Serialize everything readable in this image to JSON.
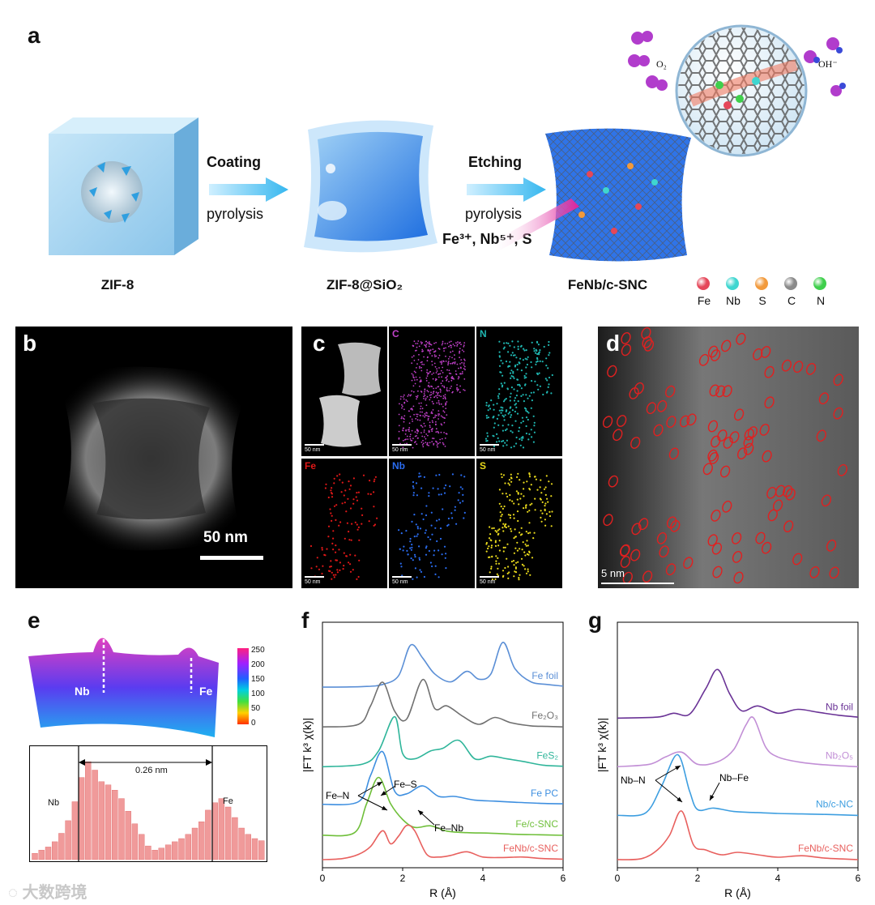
{
  "panel_labels": {
    "a": "a",
    "b": "b",
    "c": "c",
    "d": "d",
    "e": "e",
    "f": "f",
    "g": "g"
  },
  "schematic": {
    "step1": {
      "top": "Coating",
      "bottom": "pyrolysis"
    },
    "step2": {
      "top": "Etching",
      "bottom": "pyrolysis",
      "reagents": "Fe³⁺,  Nb⁵⁺,  S"
    },
    "labels": {
      "zif8": "ZIF-8",
      "zif8sio2": "ZIF-8@SiO₂",
      "product": "FeNb/c-SNC"
    },
    "bubble": {
      "o2": "O₂",
      "oh": "OH⁻"
    },
    "legend": [
      {
        "name": "Fe",
        "color": "#e5475a"
      },
      {
        "name": "Nb",
        "color": "#3fd6d0"
      },
      {
        "name": "S",
        "color": "#f29a3c"
      },
      {
        "name": "C",
        "color": "#8a8a8a"
      },
      {
        "name": "N",
        "color": "#3fcf4c"
      }
    ]
  },
  "panel_b": {
    "scale": "50 nm"
  },
  "panel_c": {
    "maps": [
      {
        "label": "",
        "color": "#cccccc"
      },
      {
        "label": "C",
        "color": "#c040c8"
      },
      {
        "label": "N",
        "color": "#1fb5b0"
      },
      {
        "label": "Fe",
        "color": "#e01818"
      },
      {
        "label": "Nb",
        "color": "#2a6cf0"
      },
      {
        "label": "S",
        "color": "#e8d81c"
      }
    ],
    "scale": "50 nm"
  },
  "panel_d": {
    "scale": "5 nm"
  },
  "panel_e": {
    "colorbar_ticks": [
      "250",
      "200",
      "150",
      "100",
      "50",
      "0"
    ],
    "peak_labels": {
      "nb": "Nb",
      "fe": "Fe"
    },
    "profile_labels": {
      "nb": "Nb",
      "fe": "Fe",
      "distance": "0.26 nm"
    },
    "profile": [
      0.06,
      0.09,
      0.12,
      0.17,
      0.25,
      0.37,
      0.55,
      0.78,
      0.93,
      0.85,
      0.74,
      0.71,
      0.66,
      0.58,
      0.46,
      0.34,
      0.24,
      0.13,
      0.09,
      0.11,
      0.14,
      0.17,
      0.2,
      0.24,
      0.3,
      0.36,
      0.47,
      0.54,
      0.58,
      0.5,
      0.4,
      0.3,
      0.24,
      0.2,
      0.18
    ]
  },
  "chart_data": [
    {
      "type": "line",
      "panel": "f",
      "xlabel": "R (Å)",
      "ylabel": "|FT k³ χ(k)|",
      "xlim": [
        0,
        6
      ],
      "xticks": [
        "0",
        "2",
        "4",
        "6"
      ],
      "series": [
        {
          "name": "Fe foil",
          "color": "#5b8fd6",
          "offset": 0.78,
          "x": [
            0,
            1,
            1.5,
            1.9,
            2.2,
            2.5,
            2.8,
            3.2,
            3.6,
            3.9,
            4.2,
            4.5,
            4.8,
            5.2,
            5.6,
            6
          ],
          "y": [
            0,
            0.01,
            0.05,
            0.22,
            0.8,
            0.55,
            0.25,
            0.1,
            0.3,
            0.15,
            0.25,
            0.85,
            0.35,
            0.1,
            0.05,
            0.02
          ]
        },
        {
          "name": "Fe₂O₃",
          "color": "#707070",
          "offset": 0.6,
          "x": [
            0,
            0.9,
            1.2,
            1.5,
            1.8,
            2.1,
            2.5,
            2.8,
            3.1,
            3.5,
            3.9,
            4.3,
            4.7,
            5.2,
            5.6,
            6
          ],
          "y": [
            0,
            0.05,
            0.4,
            0.85,
            0.3,
            0.15,
            0.9,
            0.35,
            0.4,
            0.2,
            0.05,
            0.18,
            0.08,
            0.02,
            0.01,
            0
          ]
        },
        {
          "name": "FeS₂",
          "color": "#2fb59a",
          "offset": 0.42,
          "x": [
            0,
            1,
            1.4,
            1.8,
            2.0,
            2.3,
            2.7,
            3.0,
            3.4,
            3.8,
            4.2,
            4.6,
            5.0,
            5.5,
            6
          ],
          "y": [
            0,
            0.05,
            0.3,
            0.95,
            0.25,
            0.15,
            0.3,
            0.35,
            0.5,
            0.15,
            0.2,
            0.15,
            0.1,
            0.03,
            0.01
          ]
        },
        {
          "name": "Fe PC",
          "color": "#3e8fe0",
          "offset": 0.25,
          "x": [
            0,
            0.9,
            1.2,
            1.5,
            1.8,
            2.1,
            2.5,
            2.9,
            3.3,
            3.8,
            4.3,
            4.8,
            5.4,
            6
          ],
          "y": [
            0,
            0.05,
            0.55,
            1.0,
            0.25,
            0.2,
            0.35,
            0.15,
            0.15,
            0.08,
            0.06,
            0.04,
            0.02,
            0.01
          ]
        },
        {
          "name": "Fe/c-SNC",
          "color": "#6fbf3a",
          "offset": 0.11,
          "x": [
            0,
            0.8,
            1.1,
            1.4,
            1.7,
            2.0,
            2.3,
            2.7,
            3.1,
            3.6,
            4.2,
            4.8,
            5.4,
            6
          ],
          "y": [
            0,
            0.05,
            0.6,
            1.1,
            0.6,
            0.3,
            0.15,
            0.18,
            0.08,
            0.05,
            0.04,
            0.02,
            0.01,
            0
          ]
        },
        {
          "name": "FeNb/c-SNC",
          "color": "#e8605e",
          "offset": 0.0,
          "x": [
            0,
            0.5,
            0.9,
            1.2,
            1.5,
            1.7,
            1.9,
            2.1,
            2.3,
            2.6,
            2.9,
            3.2,
            3.6,
            4.0,
            4.5,
            5.0,
            5.5,
            6
          ],
          "y": [
            0,
            0.02,
            0.1,
            0.25,
            0.55,
            0.3,
            0.45,
            0.65,
            0.55,
            0.1,
            0.05,
            0.08,
            0.15,
            0.05,
            0.04,
            0.05,
            0.02,
            0.01
          ]
        }
      ],
      "annotations": [
        "Fe–N",
        "Fe–S",
        "Fe–Nb"
      ]
    },
    {
      "type": "line",
      "panel": "g",
      "xlabel": "R (Å)",
      "ylabel": "|FT k³ χ(k)|",
      "xlim": [
        0,
        6
      ],
      "xticks": [
        "0",
        "2",
        "4",
        "6"
      ],
      "series": [
        {
          "name": "Nb foil",
          "color": "#6a3396",
          "offset": 0.64,
          "x": [
            0,
            1.0,
            1.4,
            1.8,
            2.2,
            2.5,
            2.8,
            3.1,
            3.5,
            4.0,
            4.5,
            5.0,
            5.5,
            6
          ],
          "y": [
            0,
            0.02,
            0.1,
            0.08,
            0.6,
            1.0,
            0.5,
            0.15,
            0.25,
            0.1,
            0.18,
            0.12,
            0.06,
            0.02
          ]
        },
        {
          "name": "Nb₂O₅",
          "color": "#c28fd6",
          "offset": 0.42,
          "x": [
            0,
            0.8,
            1.2,
            1.6,
            2.0,
            2.5,
            2.9,
            3.2,
            3.4,
            3.7,
            4.0,
            4.5,
            5.0,
            5.5,
            6
          ],
          "y": [
            0,
            0.05,
            0.2,
            0.3,
            0.05,
            0.1,
            0.35,
            0.85,
            1.0,
            0.4,
            0.2,
            0.1,
            0.05,
            0.02,
            0
          ]
        },
        {
          "name": "Nb/c-NC",
          "color": "#3d9ee0",
          "offset": 0.2,
          "x": [
            0,
            0.7,
            1.1,
            1.5,
            1.8,
            2.0,
            2.4,
            2.9,
            3.4,
            4.0,
            4.6,
            5.2,
            6
          ],
          "y": [
            0,
            0.05,
            0.6,
            1.25,
            0.5,
            0.12,
            0.15,
            0.08,
            0.06,
            0.04,
            0.03,
            0.02,
            0
          ]
        },
        {
          "name": "FeNb/c-SNC",
          "color": "#e8605e",
          "offset": 0.0,
          "x": [
            0,
            0.6,
            1.0,
            1.3,
            1.6,
            1.9,
            2.2,
            2.6,
            3.0,
            3.5,
            4.0,
            4.6,
            5.2,
            6
          ],
          "y": [
            0,
            0.02,
            0.2,
            0.5,
            1.0,
            0.3,
            0.2,
            0.1,
            0.15,
            0.1,
            0.05,
            0.08,
            0.03,
            0
          ]
        }
      ],
      "annotations": [
        "Nb–N",
        "Nb–Fe"
      ]
    }
  ],
  "watermark": "大数跨境"
}
